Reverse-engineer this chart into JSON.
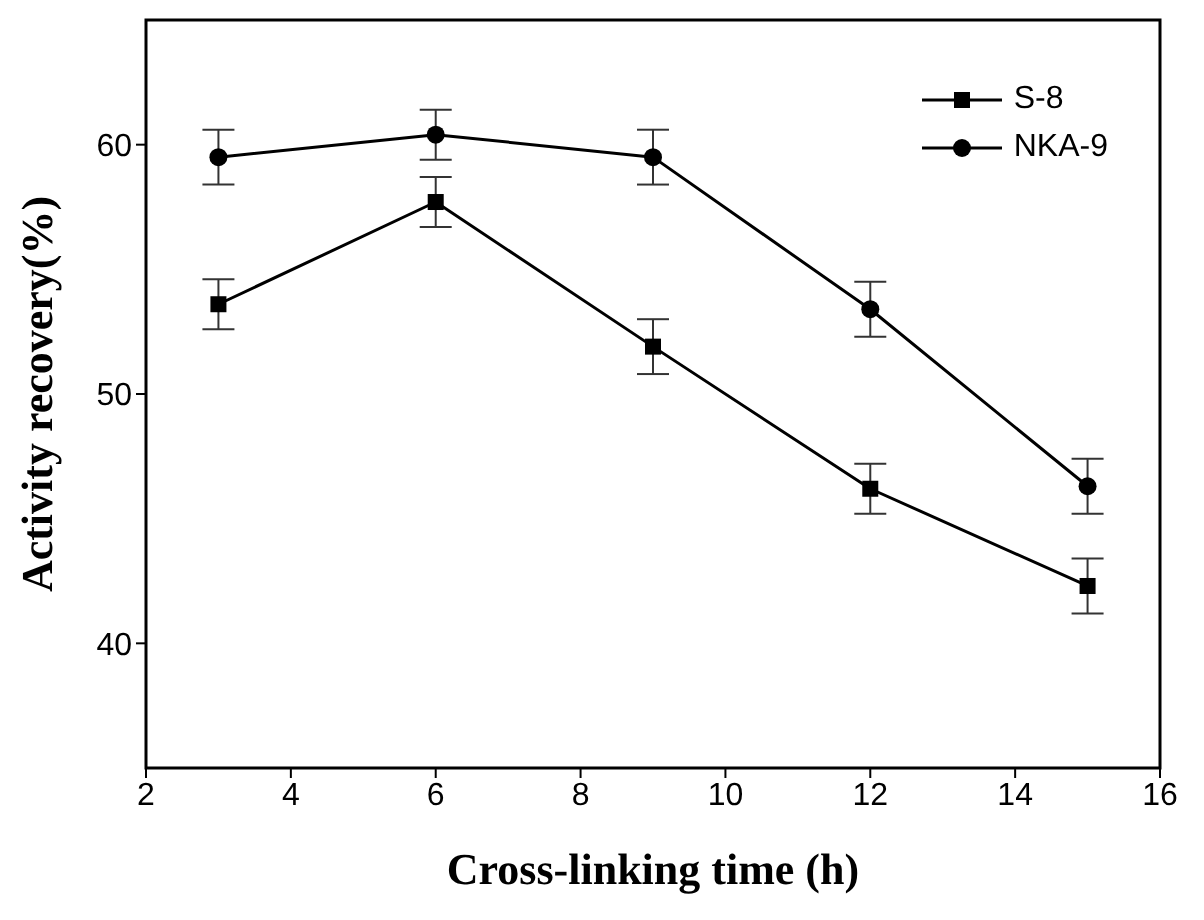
{
  "chart_data": {
    "type": "line",
    "xlabel": "Cross-linking time (h)",
    "ylabel": "Activity recovery(%)",
    "x": [
      3,
      6,
      9,
      12,
      15
    ],
    "series": [
      {
        "name": "S-8",
        "color": "#000000",
        "marker": "square",
        "values": [
          53.6,
          57.7,
          51.9,
          46.2,
          42.3
        ],
        "errors": [
          1,
          1,
          1.1,
          1,
          1.1
        ]
      },
      {
        "name": "NKA-9",
        "color": "#000000",
        "marker": "circle",
        "values": [
          59.5,
          60.4,
          59.5,
          53.4,
          46.3
        ],
        "errors": [
          1.1,
          1,
          1.1,
          1.1,
          1.1
        ]
      }
    ],
    "xlim": [
      2,
      16
    ],
    "xticks": [
      2,
      4,
      6,
      8,
      10,
      12,
      14,
      16
    ],
    "ylim": [
      35,
      65
    ],
    "yticks": [
      40,
      50,
      60
    ],
    "legend": "top right",
    "grid": false,
    "line_style": "solid"
  }
}
